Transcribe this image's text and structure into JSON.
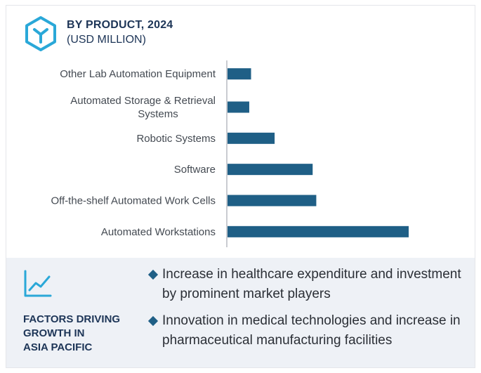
{
  "header": {
    "title": "BY PRODUCT, 2024",
    "subtitle": "(USD MILLION)",
    "icon": "hexagon-y-logo-icon"
  },
  "chart_data": {
    "type": "bar",
    "orientation": "horizontal",
    "title": "BY PRODUCT, 2024",
    "subtitle": "(USD MILLION)",
    "categories": [
      [
        "Other Lab Automation Equipment"
      ],
      [
        "Automated Storage & Retrieval",
        "Systems"
      ],
      [
        "Robotic Systems"
      ],
      [
        "Software"
      ],
      [
        "Off-the-shelf Automated Work Cells"
      ],
      [
        "Automated Workstations"
      ]
    ],
    "values": [
      13,
      12,
      26,
      47,
      49,
      100
    ],
    "bar_color": "#1f5f86",
    "axis_color": "#b8bcc2",
    "grid": false,
    "legend": "none"
  },
  "factors": {
    "icon": "line-chart-icon",
    "title_lines": [
      "FACTORS DRIVING",
      "GROWTH IN",
      "ASIA PACIFIC"
    ],
    "bullets": [
      "Increase in healthcare expenditure and investment by prominent market players",
      "Innovation in medical technologies and increase in pharmaceutical manufacturing facilities"
    ],
    "accent_color": "#1f5f86"
  }
}
